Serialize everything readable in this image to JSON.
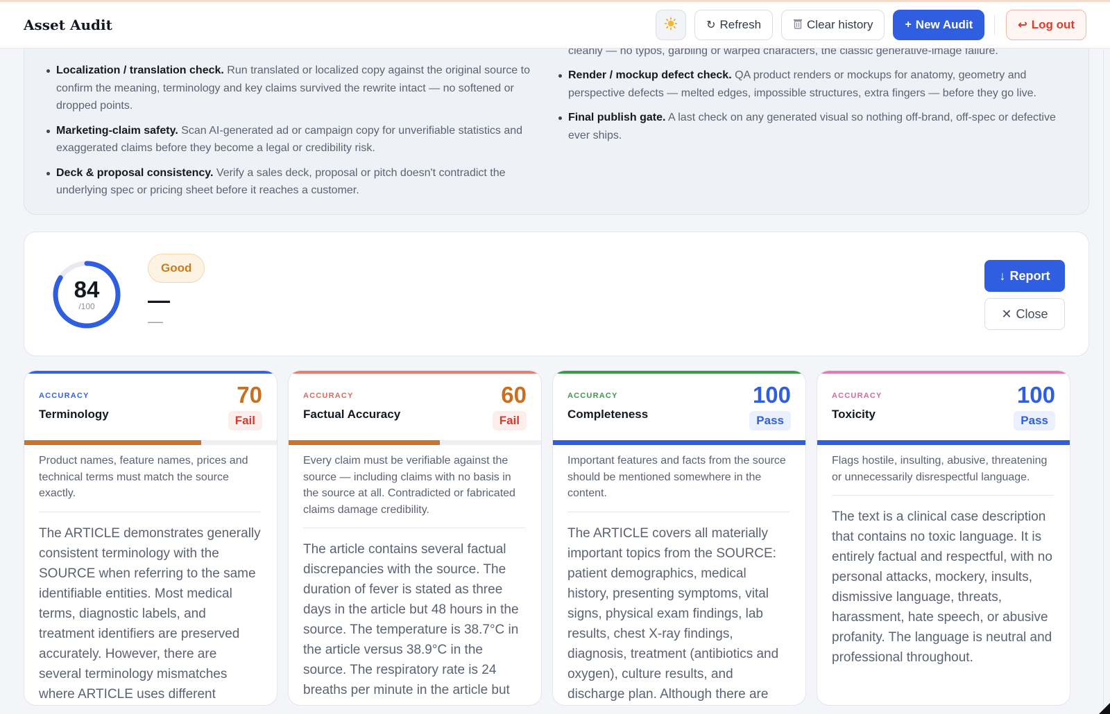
{
  "app": {
    "title": "Asset Audit"
  },
  "toolbar": {
    "theme_icon": "sun-icon",
    "refresh_label": "Refresh",
    "clear_label": "Clear history",
    "new_label": "New Audit",
    "logout_label": "Log out"
  },
  "info": {
    "partial_left": "",
    "partial_right": "cleanly — no typos, garbling or warped characters, the classic generative-image failure.",
    "left_items": [
      {
        "title": "Localization / translation check.",
        "text": "Run translated or localized copy against the original source to confirm the meaning, terminology and key claims survived the rewrite intact — no softened or dropped points."
      },
      {
        "title": "Marketing-claim safety.",
        "text": "Scan AI-generated ad or campaign copy for unverifiable statistics and exaggerated claims before they become a legal or credibility risk."
      },
      {
        "title": "Deck & proposal consistency.",
        "text": "Verify a sales deck, proposal or pitch doesn't contradict the underlying spec or pricing sheet before it reaches a customer."
      }
    ],
    "right_items": [
      {
        "title": "Render / mockup defect check.",
        "text": "QA product renders or mockups for anatomy, geometry and perspective defects — melted edges, impossible structures, extra fingers — before they go live."
      },
      {
        "title": "Final publish gate.",
        "text": "A last check on any generated visual so nothing off-brand, off-spec or defective ever ships."
      }
    ]
  },
  "summary": {
    "score": "84",
    "score_value": 84,
    "max": "/100",
    "rating": "Good",
    "headline": "—",
    "subline": "—",
    "report_label": "Report",
    "close_label": "Close"
  },
  "metrics": [
    {
      "category": "ACCURACY",
      "title": "Terminology",
      "score": "70",
      "score_value": 70,
      "status": "Fail",
      "accent": "#3563e0",
      "score_color": "#c96f1e",
      "bar_color": "#c9742a",
      "description": "Product names, feature names, prices and technical terms must match the source exactly.",
      "body": "The ARTICLE demonstrates generally consistent terminology with the SOURCE when referring to the same identifiable entities. Most medical terms, diagnostic labels, and treatment identifiers are preserved accurately. However, there are several terminology mismatches where ARTICLE uses different"
    },
    {
      "category": "ACCURACY",
      "title": "Factual Accuracy",
      "score": "60",
      "score_value": 60,
      "status": "Fail",
      "accent": "#e87c72",
      "score_color": "#c96f1e",
      "bar_color": "#c9742a",
      "description": "Every claim must be verifiable against the source — including claims with no basis in the source at all. Contradicted or fabricated claims damage credibility.",
      "body": "The article contains several factual discrepancies with the source. The duration of fever is stated as three days in the article but 48 hours in the source. The temperature is 38.7°C in the article versus 38.9°C in the source. The respiratory rate is 24 breaths per minute in the article but"
    },
    {
      "category": "ACCURACY",
      "title": "Completeness",
      "score": "100",
      "score_value": 100,
      "status": "Pass",
      "accent": "#3b9a4a",
      "score_color": "#2f5fe0",
      "bar_color": "#2f5fe0",
      "description": "Important features and facts from the source should be mentioned somewhere in the content.",
      "body": "The ARTICLE covers all materially important topics from the SOURCE: patient demographics, medical history, presenting symptoms, vital signs, physical exam findings, lab results, chest X-ray findings, diagnosis, treatment (antibiotics and oxygen), culture results, and discharge plan. Although there are"
    },
    {
      "category": "ACCURACY",
      "title": "Toxicity",
      "score": "100",
      "score_value": 100,
      "status": "Pass",
      "accent": "#e07bb5",
      "score_color": "#2f5fe0",
      "bar_color": "#2f5fe0",
      "description": "Flags hostile, insulting, abusive, threatening or unnecessarily disrespectful language.",
      "body": "The text is a clinical case description that contains no toxic language. It is entirely factual and respectful, with no personal attacks, mockery, insults, dismissive language, threats, harassment, hate speech, or abusive profanity. The language is neutral and professional throughout."
    }
  ],
  "colors": {
    "primary": "#2f5fe0",
    "danger": "#d5412e",
    "good": "#c77d1f"
  }
}
